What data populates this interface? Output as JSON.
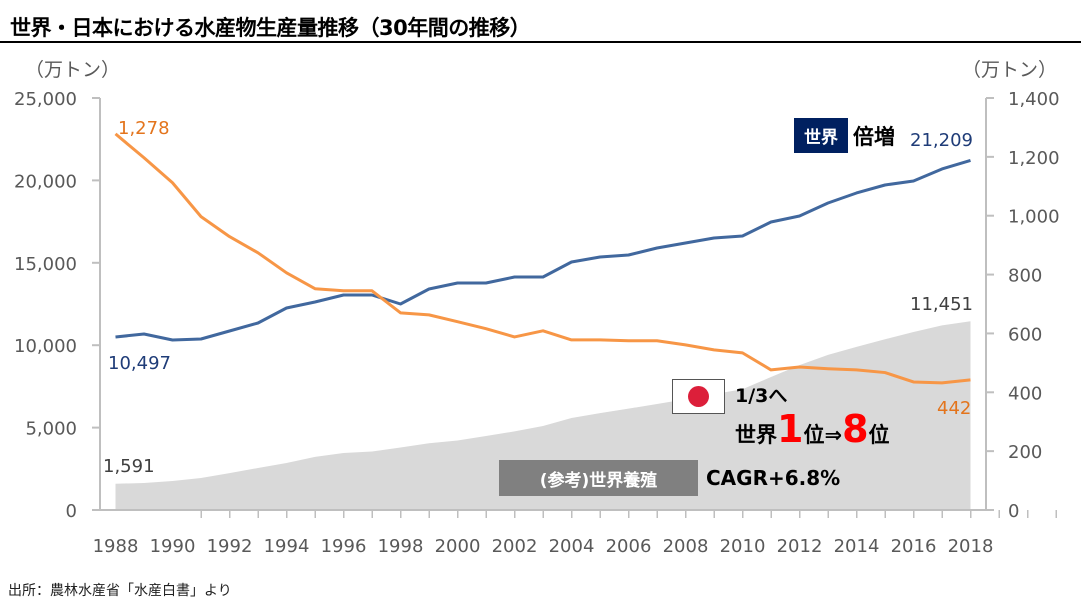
{
  "title": "世界・日本における水産物生産量推移（30年間の推移）",
  "source": "出所：農林水産省「水産白書」より",
  "annotations": {
    "world_badge": "世界",
    "world_double": "倍増",
    "japan_flag_icon": "japan-flag-icon",
    "japan_third": "1/3へ",
    "japan_rank_prefix": "世界",
    "japan_rank_from": "1",
    "japan_rank_mid": "位⇒",
    "japan_rank_to": "8",
    "japan_rank_suffix": "位",
    "aqua_badge": "(参考)世界養殖",
    "aqua_cagr": "CAGR+6.8%"
  },
  "colors": {
    "world": "#41689e",
    "japan": "#f79646",
    "aquaculture": "#d9d9d9",
    "world_label": "#1f3c78",
    "japan_label": "#e3741c",
    "accent_red": "#ff0000"
  },
  "chart_data": {
    "type": "line",
    "title": "世界・日本における水産物生産量推移（30年間の推移）",
    "xlabel": "",
    "ylabel": "（万トン）",
    "y2label": "（万トン）",
    "ylim": [
      0,
      25000
    ],
    "y2lim": [
      0,
      1400
    ],
    "yticks": [
      0,
      5000,
      10000,
      15000,
      20000,
      25000
    ],
    "ytick_labels": [
      "0",
      "5,000",
      "10,000",
      "15,000",
      "20,000",
      "25,000"
    ],
    "y2ticks": [
      0,
      200,
      400,
      600,
      800,
      1000,
      1200,
      1400
    ],
    "y2tick_labels": [
      "0",
      "200",
      "400",
      "600",
      "800",
      "1,000",
      "1,200",
      "1,400"
    ],
    "x": [
      1988,
      1989,
      1990,
      1991,
      1992,
      1993,
      1994,
      1995,
      1996,
      1997,
      1998,
      1999,
      2000,
      2001,
      2002,
      2003,
      2004,
      2005,
      2006,
      2007,
      2008,
      2009,
      2010,
      2011,
      2012,
      2013,
      2014,
      2015,
      2016,
      2017,
      2018
    ],
    "xtick_labels": [
      "1988",
      "1990",
      "1992",
      "1994",
      "1996",
      "1998",
      "2000",
      "2002",
      "2004",
      "2006",
      "2008",
      "2010",
      "2012",
      "2014",
      "2016",
      "2018"
    ],
    "grid": false,
    "legend": "none",
    "series": [
      {
        "name": "世界養殖 (参考)",
        "type": "area",
        "axis": "left",
        "values": [
          1591,
          1640,
          1760,
          1940,
          2240,
          2550,
          2850,
          3220,
          3460,
          3550,
          3790,
          4050,
          4220,
          4490,
          4770,
          5100,
          5580,
          5880,
          6150,
          6430,
          6720,
          7030,
          7330,
          8070,
          8790,
          9410,
          9900,
          10360,
          10800,
          11200,
          11451
        ],
        "start_label": "1,591",
        "end_label": "11,451"
      },
      {
        "name": "世界",
        "type": "line",
        "axis": "left",
        "values": [
          10497,
          10680,
          10315,
          10376,
          10862,
          11347,
          12257,
          12621,
          13046,
          13046,
          12500,
          13410,
          13774,
          13774,
          14138,
          14138,
          15049,
          15352,
          15473,
          15898,
          16201,
          16505,
          16626,
          17476,
          17840,
          18629,
          19236,
          19721,
          19964,
          20692,
          21209
        ],
        "start_label": "10,497",
        "end_label": "21,209"
      },
      {
        "name": "日本",
        "type": "line",
        "axis": "right",
        "values": [
          1278,
          1197,
          1112,
          997,
          929,
          874,
          806,
          752,
          745,
          745,
          670,
          663,
          640,
          616,
          588,
          609,
          578,
          578,
          575,
          575,
          561,
          544,
          534,
          476,
          486,
          480,
          476,
          467,
          435,
          432,
          442
        ],
        "start_label": "1,278",
        "end_label": "442"
      }
    ]
  }
}
